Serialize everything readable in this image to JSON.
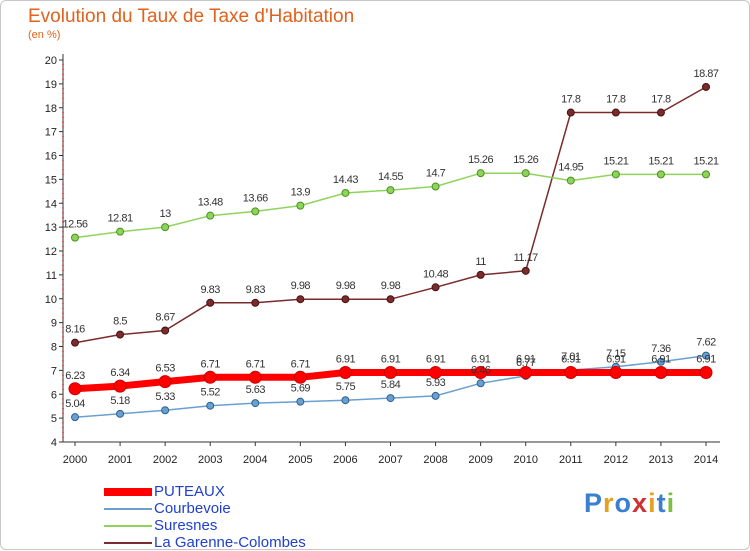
{
  "chart_data": {
    "type": "line",
    "title": "Evolution du Taux de Taxe d'Habitation",
    "subtitle": "(en %)",
    "x": [
      2000,
      2001,
      2002,
      2003,
      2004,
      2005,
      2006,
      2007,
      2008,
      2009,
      2010,
      2011,
      2012,
      2013,
      2014
    ],
    "xlabel": "",
    "ylabel": "",
    "ylim": [
      4,
      20
    ],
    "yticks": [
      4,
      5,
      6,
      7,
      8,
      9,
      10,
      11,
      12,
      13,
      14,
      15,
      16,
      17,
      18,
      19,
      20
    ],
    "grid": false,
    "legend_position": "bottom-left",
    "series": [
      {
        "name": "PUTEAUX",
        "color": "#ff0000",
        "values": [
          6.23,
          6.34,
          6.53,
          6.71,
          6.71,
          6.71,
          6.91,
          6.91,
          6.91,
          6.91,
          6.91,
          6.91,
          6.91,
          6.91,
          6.91
        ],
        "labels": [
          "6.23",
          "6.34",
          "6.53",
          "6.71",
          "6.71",
          "6.71",
          "6.91",
          "6.91",
          "6.91",
          "6.91",
          "6.91",
          "6.91",
          "6.91",
          "6.91",
          "6.91"
        ]
      },
      {
        "name": "Courbevoie",
        "color": "#6a9fd0",
        "values": [
          5.04,
          5.18,
          5.33,
          5.52,
          5.63,
          5.69,
          5.75,
          5.84,
          5.93,
          6.46,
          6.77,
          7.01,
          7.15,
          7.36,
          7.62
        ],
        "labels": [
          "5.04",
          "5.18",
          "5.33",
          "5.52",
          "5.63",
          "5.69",
          "5.75",
          "5.84",
          "5.93",
          "6.46",
          "6.77",
          "7.01",
          "7.15",
          "7.36",
          "7.62"
        ]
      },
      {
        "name": "Suresnes",
        "color": "#8fd45a",
        "values": [
          12.56,
          12.81,
          13,
          13.48,
          13.66,
          13.9,
          14.43,
          14.55,
          14.7,
          15.26,
          15.26,
          14.95,
          15.21,
          15.21,
          15.21
        ],
        "labels": [
          "12.56",
          "12.81",
          "13",
          "13.48",
          "13.66",
          "13.9",
          "14.43",
          "14.55",
          "14.7",
          "15.26",
          "15.26",
          "14.95",
          "15.21",
          "15.21",
          "15.21"
        ]
      },
      {
        "name": "La Garenne-Colombes",
        "color": "#7a2b2b",
        "values": [
          8.16,
          8.5,
          8.67,
          9.83,
          9.83,
          9.98,
          9.98,
          9.98,
          10.48,
          11,
          11.17,
          17.8,
          17.8,
          17.8,
          18.87
        ],
        "labels": [
          "8.16",
          "8.5",
          "8.67",
          "9.83",
          "9.83",
          "9.98",
          "9.98",
          "9.98",
          "10.48",
          "11",
          "11.17",
          "17.8",
          "17.8",
          "17.8",
          "18.87"
        ]
      }
    ]
  },
  "brand": {
    "letters": [
      {
        "ch": "P",
        "color": "#3a7fd0"
      },
      {
        "ch": "r",
        "color": "#e8a020"
      },
      {
        "ch": "o",
        "color": "#3a7fd0"
      },
      {
        "ch": "x",
        "color": "#d03030"
      },
      {
        "ch": "i",
        "color": "#e8a020"
      },
      {
        "ch": "t",
        "color": "#3a7fd0"
      },
      {
        "ch": "i",
        "color": "#7cc040"
      }
    ]
  }
}
